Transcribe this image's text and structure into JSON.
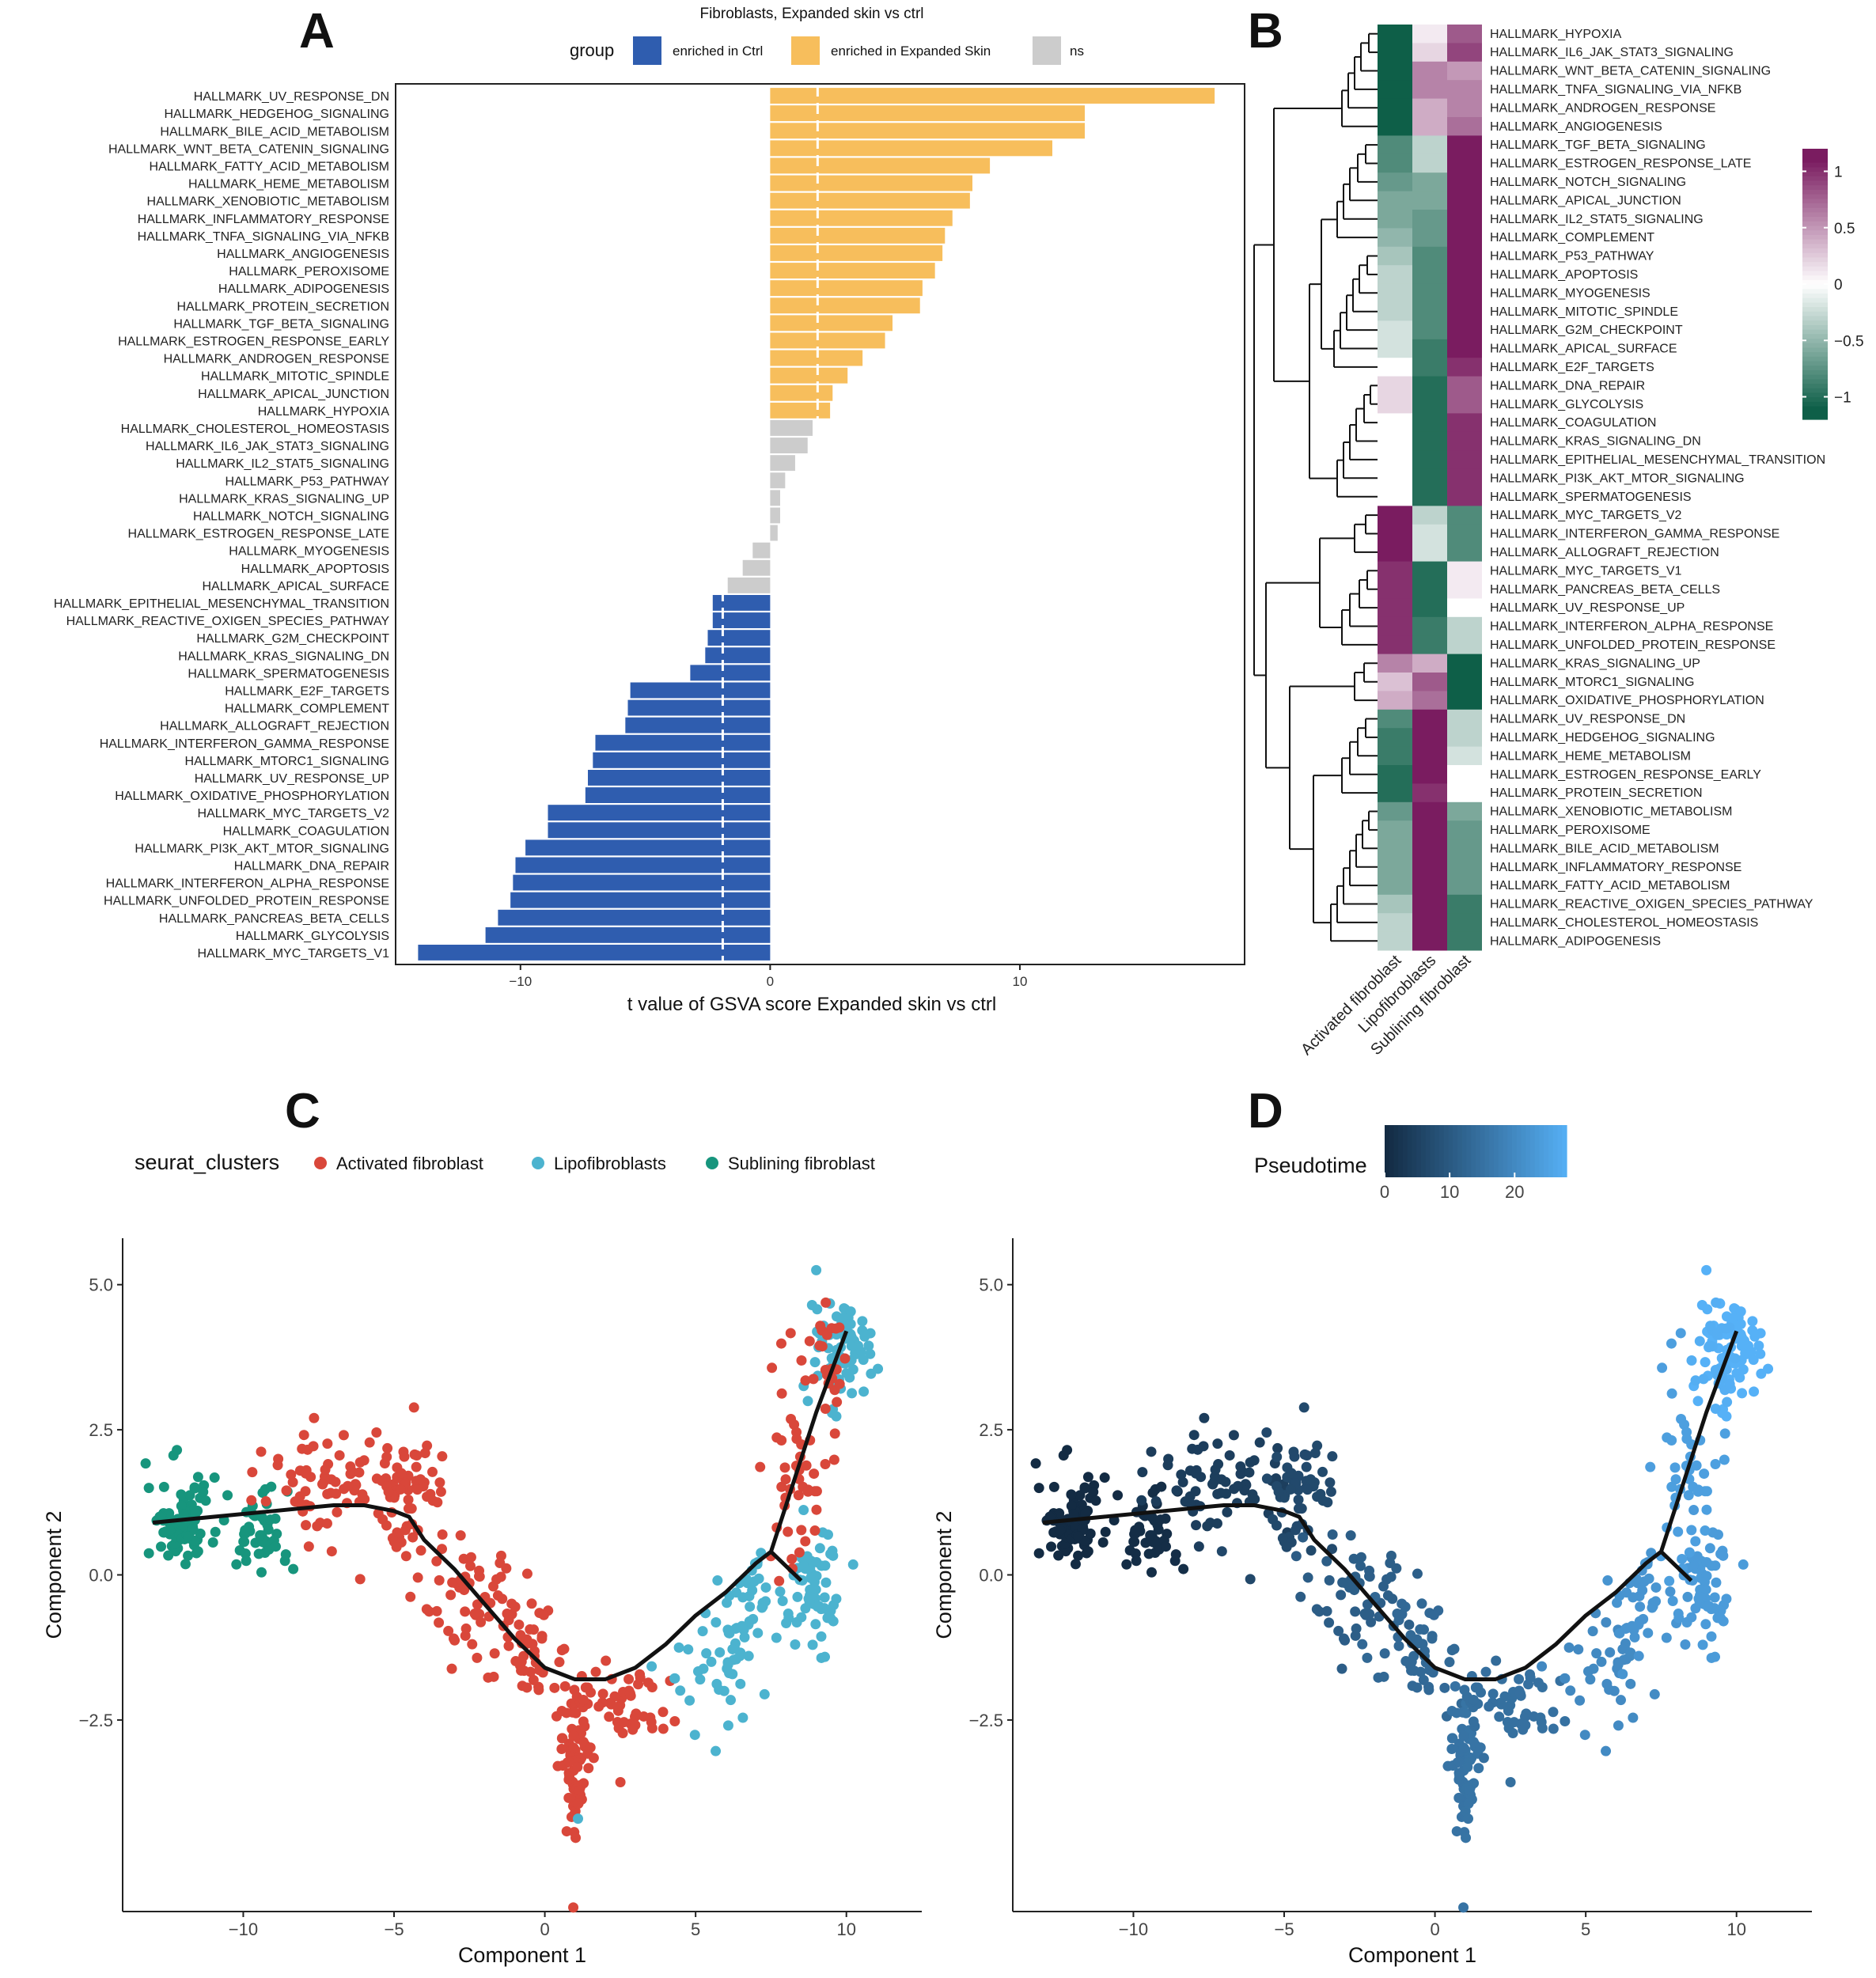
{
  "colors": {
    "ctrl": "#2F5DAF",
    "expanded": "#F7BE5C",
    "ns": "#CCCCCC",
    "activated": "#D9473A",
    "lipo": "#4CB3CF",
    "sublining": "#17957D",
    "pt_low": "#132B43",
    "pt_high": "#56B1F7",
    "hm_low": "#0E5F48",
    "hm_mid": "#FFFFFF",
    "hm_high": "#7A1C60"
  },
  "panels": {
    "A": {
      "label": "A"
    },
    "B": {
      "label": "B"
    },
    "C": {
      "label": "C"
    },
    "D": {
      "label": "D"
    }
  },
  "chart_data": [
    {
      "panel": "A",
      "type": "bar",
      "orientation": "horizontal",
      "title": "Fibroblasts, Expanded skin vs ctrl",
      "xlabel": "t value of GSVA score  Expanded skin vs ctrl",
      "xlim": [
        -15,
        19
      ],
      "xticks": [
        -10,
        0,
        10
      ],
      "threshold_lines": [
        -1.9,
        1.9
      ],
      "legend": {
        "title": "group",
        "entries": [
          {
            "label": "enriched in Ctrl",
            "color_key": "ctrl"
          },
          {
            "label": "enriched in Expanded Skin",
            "color_key": "expanded"
          },
          {
            "label": "ns",
            "color_key": "ns"
          }
        ]
      },
      "categories": [
        "HALLMARK_UV_RESPONSE_DN",
        "HALLMARK_HEDGEHOG_SIGNALING",
        "HALLMARK_BILE_ACID_METABOLISM",
        "HALLMARK_WNT_BETA_CATENIN_SIGNALING",
        "HALLMARK_FATTY_ACID_METABOLISM",
        "HALLMARK_HEME_METABOLISM",
        "HALLMARK_XENOBIOTIC_METABOLISM",
        "HALLMARK_INFLAMMATORY_RESPONSE",
        "HALLMARK_TNFA_SIGNALING_VIA_NFKB",
        "HALLMARK_ANGIOGENESIS",
        "HALLMARK_PEROXISOME",
        "HALLMARK_ADIPOGENESIS",
        "HALLMARK_PROTEIN_SECRETION",
        "HALLMARK_TGF_BETA_SIGNALING",
        "HALLMARK_ESTROGEN_RESPONSE_EARLY",
        "HALLMARK_ANDROGEN_RESPONSE",
        "HALLMARK_MITOTIC_SPINDLE",
        "HALLMARK_APICAL_JUNCTION",
        "HALLMARK_HYPOXIA",
        "HALLMARK_CHOLESTEROL_HOMEOSTASIS",
        "HALLMARK_IL6_JAK_STAT3_SIGNALING",
        "HALLMARK_IL2_STAT5_SIGNALING",
        "HALLMARK_P53_PATHWAY",
        "HALLMARK_KRAS_SIGNALING_UP",
        "HALLMARK_NOTCH_SIGNALING",
        "HALLMARK_ESTROGEN_RESPONSE_LATE",
        "HALLMARK_MYOGENESIS",
        "HALLMARK_APOPTOSIS",
        "HALLMARK_APICAL_SURFACE",
        "HALLMARK_EPITHELIAL_MESENCHYMAL_TRANSITION",
        "HALLMARK_REACTIVE_OXIGEN_SPECIES_PATHWAY",
        "HALLMARK_G2M_CHECKPOINT",
        "HALLMARK_KRAS_SIGNALING_DN",
        "HALLMARK_SPERMATOGENESIS",
        "HALLMARK_E2F_TARGETS",
        "HALLMARK_COMPLEMENT",
        "HALLMARK_ALLOGRAFT_REJECTION",
        "HALLMARK_INTERFERON_GAMMA_RESPONSE",
        "HALLMARK_MTORC1_SIGNALING",
        "HALLMARK_UV_RESPONSE_UP",
        "HALLMARK_OXIDATIVE_PHOSPHORYLATION",
        "HALLMARK_MYC_TARGETS_V2",
        "HALLMARK_COAGULATION",
        "HALLMARK_PI3K_AKT_MTOR_SIGNALING",
        "HALLMARK_DNA_REPAIR",
        "HALLMARK_INTERFERON_ALPHA_RESPONSE",
        "HALLMARK_UNFOLDED_PROTEIN_RESPONSE",
        "HALLMARK_PANCREAS_BETA_CELLS",
        "HALLMARK_GLYCOLYSIS",
        "HALLMARK_MYC_TARGETS_V1"
      ],
      "values": [
        17.8,
        12.6,
        12.6,
        11.3,
        8.8,
        8.1,
        8.0,
        7.3,
        7.0,
        6.9,
        6.6,
        6.1,
        6.0,
        4.9,
        4.6,
        3.7,
        3.1,
        2.5,
        2.4,
        1.7,
        1.5,
        1.0,
        0.6,
        0.4,
        0.4,
        0.3,
        -0.7,
        -1.1,
        -1.7,
        -2.3,
        -2.3,
        -2.5,
        -2.6,
        -3.2,
        -5.6,
        -5.7,
        -5.8,
        -7.0,
        -7.1,
        -7.3,
        -7.4,
        -8.9,
        -8.9,
        -9.8,
        -10.2,
        -10.3,
        -10.4,
        -10.9,
        -11.4,
        -14.1
      ],
      "groups": [
        "expanded",
        "expanded",
        "expanded",
        "expanded",
        "expanded",
        "expanded",
        "expanded",
        "expanded",
        "expanded",
        "expanded",
        "expanded",
        "expanded",
        "expanded",
        "expanded",
        "expanded",
        "expanded",
        "expanded",
        "expanded",
        "expanded",
        "ns",
        "ns",
        "ns",
        "ns",
        "ns",
        "ns",
        "ns",
        "ns",
        "ns",
        "ns",
        "ctrl",
        "ctrl",
        "ctrl",
        "ctrl",
        "ctrl",
        "ctrl",
        "ctrl",
        "ctrl",
        "ctrl",
        "ctrl",
        "ctrl",
        "ctrl",
        "ctrl",
        "ctrl",
        "ctrl",
        "ctrl",
        "ctrl",
        "ctrl",
        "ctrl",
        "ctrl",
        "ctrl"
      ]
    },
    {
      "panel": "B",
      "type": "heatmap",
      "columns": [
        "Activated fibroblast",
        "Lipofibroblasts",
        "Sublining fibroblast"
      ],
      "colorbar": {
        "range": [
          -1.2,
          1.2
        ],
        "ticks": [
          1,
          0.5,
          0,
          -0.5,
          -1
        ],
        "tick_labels": [
          "1",
          "0.5",
          "0",
          "−0.5",
          "−1"
        ]
      },
      "rows": [
        "HALLMARK_HYPOXIA",
        "HALLMARK_IL6_JAK_STAT3_SIGNALING",
        "HALLMARK_WNT_BETA_CATENIN_SIGNALING",
        "HALLMARK_TNFA_SIGNALING_VIA_NFKB",
        "HALLMARK_ANDROGEN_RESPONSE",
        "HALLMARK_ANGIOGENESIS",
        "HALLMARK_TGF_BETA_SIGNALING",
        "HALLMARK_ESTROGEN_RESPONSE_LATE",
        "HALLMARK_NOTCH_SIGNALING",
        "HALLMARK_APICAL_JUNCTION",
        "HALLMARK_IL2_STAT5_SIGNALING",
        "HALLMARK_COMPLEMENT",
        "HALLMARK_P53_PATHWAY",
        "HALLMARK_APOPTOSIS",
        "HALLMARK_MYOGENESIS",
        "HALLMARK_MITOTIC_SPINDLE",
        "HALLMARK_G2M_CHECKPOINT",
        "HALLMARK_APICAL_SURFACE",
        "HALLMARK_E2F_TARGETS",
        "HALLMARK_DNA_REPAIR",
        "HALLMARK_GLYCOLYSIS",
        "HALLMARK_COAGULATION",
        "HALLMARK_KRAS_SIGNALING_DN",
        "HALLMARK_EPITHELIAL_MESENCHYMAL_TRANSITION",
        "HALLMARK_PI3K_AKT_MTOR_SIGNALING",
        "HALLMARK_SPERMATOGENESIS",
        "HALLMARK_MYC_TARGETS_V2",
        "HALLMARK_INTERFERON_GAMMA_RESPONSE",
        "HALLMARK_ALLOGRAFT_REJECTION",
        "HALLMARK_MYC_TARGETS_V1",
        "HALLMARK_PANCREAS_BETA_CELLS",
        "HALLMARK_UV_RESPONSE_UP",
        "HALLMARK_INTERFERON_ALPHA_RESPONSE",
        "HALLMARK_UNFOLDED_PROTEIN_RESPONSE",
        "HALLMARK_KRAS_SIGNALING_UP",
        "HALLMARK_MTORC1_SIGNALING",
        "HALLMARK_OXIDATIVE_PHOSPHORYLATION",
        "HALLMARK_UV_RESPONSE_DN",
        "HALLMARK_HEDGEHOG_SIGNALING",
        "HALLMARK_HEME_METABOLISM",
        "HALLMARK_ESTROGEN_RESPONSE_EARLY",
        "HALLMARK_PROTEIN_SECRETION",
        "HALLMARK_XENOBIOTIC_METABOLISM",
        "HALLMARK_PEROXISOME",
        "HALLMARK_BILE_ACID_METABOLISM",
        "HALLMARK_INFLAMMATORY_RESPONSE",
        "HALLMARK_FATTY_ACID_METABOLISM",
        "HALLMARK_REACTIVE_OXIGEN_SPECIES_PATHWAY",
        "HALLMARK_CHOLESTEROL_HOMEOSTASIS",
        "HALLMARK_ADIPOGENESIS"
      ],
      "values": [
        [
          -1.1,
          0.1,
          0.8
        ],
        [
          -1.1,
          0.2,
          0.9
        ],
        [
          -1.1,
          0.6,
          0.5
        ],
        [
          -1.1,
          0.6,
          0.6
        ],
        [
          -1.1,
          0.4,
          0.6
        ],
        [
          -1.1,
          0.4,
          0.7
        ],
        [
          -0.8,
          -0.3,
          1.1
        ],
        [
          -0.8,
          -0.3,
          1.1
        ],
        [
          -0.7,
          -0.6,
          1.1
        ],
        [
          -0.6,
          -0.6,
          1.1
        ],
        [
          -0.6,
          -0.7,
          1.1
        ],
        [
          -0.5,
          -0.7,
          1.1
        ],
        [
          -0.4,
          -0.8,
          1.1
        ],
        [
          -0.3,
          -0.8,
          1.1
        ],
        [
          -0.3,
          -0.8,
          1.1
        ],
        [
          -0.3,
          -0.8,
          1.1
        ],
        [
          -0.2,
          -0.8,
          1.1
        ],
        [
          -0.2,
          -0.9,
          1.1
        ],
        [
          0.0,
          -0.9,
          1.0
        ],
        [
          0.2,
          -1.0,
          0.8
        ],
        [
          0.2,
          -1.0,
          0.8
        ],
        [
          0.0,
          -1.0,
          1.0
        ],
        [
          0.0,
          -1.0,
          1.0
        ],
        [
          0.0,
          -1.0,
          1.0
        ],
        [
          0.0,
          -1.0,
          1.0
        ],
        [
          0.0,
          -1.0,
          1.0
        ],
        [
          1.1,
          -0.3,
          -0.8
        ],
        [
          1.1,
          -0.2,
          -0.8
        ],
        [
          1.1,
          -0.2,
          -0.8
        ],
        [
          1.0,
          -1.0,
          0.1
        ],
        [
          1.0,
          -1.0,
          0.1
        ],
        [
          1.0,
          -1.0,
          0.0
        ],
        [
          1.0,
          -0.9,
          -0.3
        ],
        [
          1.0,
          -0.9,
          -0.3
        ],
        [
          0.6,
          0.4,
          -1.1
        ],
        [
          0.3,
          0.8,
          -1.1
        ],
        [
          0.4,
          0.7,
          -1.1
        ],
        [
          -0.8,
          1.1,
          -0.3
        ],
        [
          -0.9,
          1.1,
          -0.3
        ],
        [
          -0.9,
          1.1,
          -0.2
        ],
        [
          -1.0,
          1.1,
          0.0
        ],
        [
          -1.0,
          1.0,
          0.0
        ],
        [
          -0.7,
          1.1,
          -0.6
        ],
        [
          -0.6,
          1.1,
          -0.7
        ],
        [
          -0.6,
          1.1,
          -0.7
        ],
        [
          -0.6,
          1.1,
          -0.7
        ],
        [
          -0.6,
          1.1,
          -0.7
        ],
        [
          -0.4,
          1.1,
          -0.9
        ],
        [
          -0.3,
          1.1,
          -0.9
        ],
        [
          -0.3,
          1.1,
          -0.9
        ]
      ]
    },
    {
      "panel": "C",
      "type": "scatter",
      "legend_title": "seurat_clusters",
      "legend": [
        {
          "label": "Activated fibroblast",
          "color_key": "activated"
        },
        {
          "label": "Lipofibroblasts",
          "color_key": "lipo"
        },
        {
          "label": "Sublining fibroblast",
          "color_key": "sublining"
        }
      ],
      "xlabel": "Component 1",
      "ylabel": "Component 2",
      "xlim": [
        -14,
        12.5
      ],
      "ylim": [
        -5.8,
        5.8
      ],
      "xticks": [
        -10,
        -5,
        0,
        5,
        10
      ],
      "yticks": [
        5.0,
        2.5,
        0.0,
        -2.5
      ],
      "ytick_labels": [
        "5.0",
        "2.5",
        "0.0",
        "−2.5"
      ],
      "xtick_labels": [
        "−10",
        "−5",
        "0",
        "5",
        "10"
      ],
      "trajectory": [
        [
          -13,
          0.9
        ],
        [
          -11,
          1.0
        ],
        [
          -9,
          1.1
        ],
        [
          -7,
          1.2
        ],
        [
          -6,
          1.2
        ],
        [
          -5,
          1.1
        ],
        [
          -4.5,
          1.0
        ],
        [
          -4,
          0.6
        ],
        [
          -3,
          0.1
        ],
        [
          -2,
          -0.5
        ],
        [
          -1,
          -1.1
        ],
        [
          0,
          -1.6
        ],
        [
          1,
          -1.8
        ],
        [
          2,
          -1.8
        ],
        [
          3,
          -1.6
        ],
        [
          4,
          -1.2
        ],
        [
          5,
          -0.7
        ],
        [
          6,
          -0.3
        ],
        [
          7,
          0.2
        ],
        [
          7.5,
          0.4
        ],
        [
          8,
          1.2
        ],
        [
          9,
          2.8
        ],
        [
          10,
          4.2
        ]
      ],
      "trajectory_branch": [
        [
          7.5,
          0.4
        ],
        [
          8.5,
          -0.1
        ]
      ],
      "clusters": [
        {
          "cluster": "sublining",
          "cx": -12,
          "cy": 0.9,
          "sx": 0.6,
          "sy": 0.35,
          "n": 90
        },
        {
          "cluster": "sublining",
          "cx": -9.5,
          "cy": 0.7,
          "sx": 0.5,
          "sy": 0.4,
          "n": 45
        },
        {
          "cluster": "activated",
          "cx": -7,
          "cy": 1.6,
          "sx": 1.2,
          "sy": 0.45,
          "n": 70
        },
        {
          "cluster": "activated",
          "cx": -4.5,
          "cy": 1.5,
          "sx": 0.6,
          "sy": 0.45,
          "n": 60
        },
        {
          "cluster": "activated",
          "cx": -2.5,
          "cy": -0.3,
          "sx": 1.0,
          "sy": 0.5,
          "n": 55
        },
        {
          "cluster": "activated",
          "cx": -0.5,
          "cy": -1.4,
          "sx": 0.8,
          "sy": 0.45,
          "n": 50
        },
        {
          "cluster": "activated",
          "cx": 1.0,
          "cy": -3.3,
          "sx": 0.25,
          "sy": 0.6,
          "n": 70
        },
        {
          "cluster": "activated",
          "cx": 2.5,
          "cy": -2.3,
          "sx": 0.9,
          "sy": 0.4,
          "n": 55
        },
        {
          "cluster": "lipo",
          "cx": 5.5,
          "cy": -1.6,
          "sx": 0.8,
          "sy": 0.6,
          "n": 40
        },
        {
          "cluster": "lipo",
          "cx": 7.0,
          "cy": -0.4,
          "sx": 0.6,
          "sy": 0.5,
          "n": 40
        },
        {
          "cluster": "lipo",
          "cx": 9.0,
          "cy": -0.3,
          "sx": 0.45,
          "sy": 0.5,
          "n": 60
        },
        {
          "cluster": "activated",
          "cx": 8.3,
          "cy": 2.0,
          "sx": 0.5,
          "sy": 0.9,
          "n": 45
        },
        {
          "cluster": "lipo",
          "cx": 9.8,
          "cy": 3.8,
          "sx": 0.5,
          "sy": 0.5,
          "n": 70
        },
        {
          "cluster": "activated",
          "cx": 9.2,
          "cy": 3.7,
          "sx": 0.35,
          "sy": 0.5,
          "n": 25
        }
      ]
    },
    {
      "panel": "D",
      "type": "scatter",
      "legend_title": "Pseudotime",
      "colorbar": {
        "range": [
          0,
          28
        ],
        "ticks": [
          0,
          10,
          20
        ],
        "tick_labels": [
          "0",
          "10",
          "20"
        ]
      },
      "xlabel": "Component 1",
      "ylabel": "Component 2",
      "xlim": [
        -14,
        12.5
      ],
      "ylim": [
        -5.8,
        5.8
      ],
      "xticks": [
        -10,
        -5,
        0,
        5,
        10
      ],
      "yticks": [
        5.0,
        2.5,
        0.0,
        -2.5
      ],
      "ytick_labels": [
        "5.0",
        "2.5",
        "0.0",
        "−2.5"
      ],
      "xtick_labels": [
        "−10",
        "−5",
        "0",
        "5",
        "10"
      ],
      "cluster_pseudotime": [
        0,
        2,
        5,
        7,
        11,
        13,
        15,
        14,
        19,
        21,
        22,
        23,
        27,
        26
      ]
    }
  ]
}
